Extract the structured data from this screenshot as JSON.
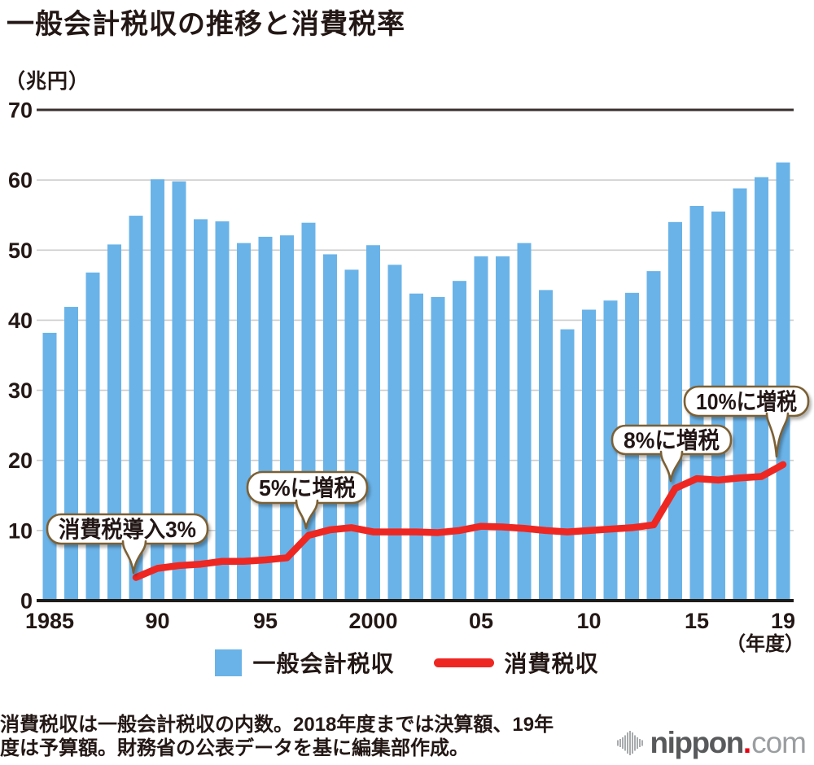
{
  "title": "一般会計税収の推移と消費税率",
  "unit_label": "（兆円）",
  "x_axis_unit": "（年度）",
  "legend": {
    "bars": "一般会計税収",
    "line": "消費税収"
  },
  "footer": {
    "line1": "消費税収は一般会計税収の内数。2018年度までは決算額、19年",
    "line2": "度は予算額。財務省の公表データを基に編集部作成。"
  },
  "logo": {
    "icon": "audio-wave-icon",
    "name": "nippon",
    "dot": ".",
    "tld": "com"
  },
  "colors": {
    "bar": "#6ab3e8",
    "line": "#ee2722",
    "grid": "#cccccc",
    "top_rule": "#382f2d",
    "axis": "#1f1b18",
    "text": "#231815",
    "callout_border": "#7b6034",
    "callout_fill": "#ffffff",
    "logo_gray": "#58595b",
    "logo_light_gray": "#9b9ea0",
    "logo_red": "#e60012",
    "wave_gray": "#a8abad"
  },
  "chart_data": {
    "type": "bar",
    "title": "一般会計税収の推移と消費税率",
    "ylabel": "（兆円）",
    "xlabel": "（年度）",
    "ylim": [
      0,
      70
    ],
    "yticks": [
      0,
      10,
      20,
      30,
      40,
      50,
      60,
      70
    ],
    "grid": "horizontal",
    "legend_position": "bottom",
    "categories": [
      1985,
      1986,
      1987,
      1988,
      1989,
      1990,
      1991,
      1992,
      1993,
      1994,
      1995,
      1996,
      1997,
      1998,
      1999,
      2000,
      2001,
      2002,
      2003,
      2004,
      2005,
      2006,
      2007,
      2008,
      2009,
      2010,
      2011,
      2012,
      2013,
      2014,
      2015,
      2016,
      2017,
      2018,
      2019
    ],
    "xticks": [
      "1985",
      "90",
      "95",
      "2000",
      "05",
      "10",
      "15",
      "19"
    ],
    "xtick_positions": [
      0,
      5,
      10,
      15,
      20,
      25,
      30,
      34
    ],
    "series": [
      {
        "name": "一般会計税収",
        "type": "bar",
        "values": [
          38.2,
          41.9,
          46.8,
          50.8,
          54.9,
          60.1,
          59.8,
          54.4,
          54.1,
          51.0,
          51.9,
          52.1,
          53.9,
          49.4,
          47.2,
          50.7,
          47.9,
          43.8,
          43.3,
          45.6,
          49.1,
          49.1,
          51.0,
          44.3,
          38.7,
          41.5,
          42.8,
          43.9,
          47.0,
          54.0,
          56.3,
          55.5,
          58.8,
          60.4,
          62.5
        ]
      },
      {
        "name": "消費税収",
        "type": "line",
        "values": [
          null,
          null,
          null,
          null,
          3.3,
          4.6,
          5.0,
          5.2,
          5.6,
          5.6,
          5.8,
          6.1,
          9.3,
          10.1,
          10.4,
          9.8,
          9.8,
          9.8,
          9.7,
          10.0,
          10.6,
          10.5,
          10.3,
          10.0,
          9.8,
          10.0,
          10.2,
          10.4,
          10.8,
          16.0,
          17.4,
          17.2,
          17.5,
          17.7,
          19.4
        ]
      }
    ],
    "annotations": [
      {
        "label": "消費税導入3%",
        "year": 1989
      },
      {
        "label": "5%に増税",
        "year": 1997
      },
      {
        "label": "8%に増税",
        "year": 2014
      },
      {
        "label": "10%に増税",
        "year": 2019
      }
    ]
  }
}
